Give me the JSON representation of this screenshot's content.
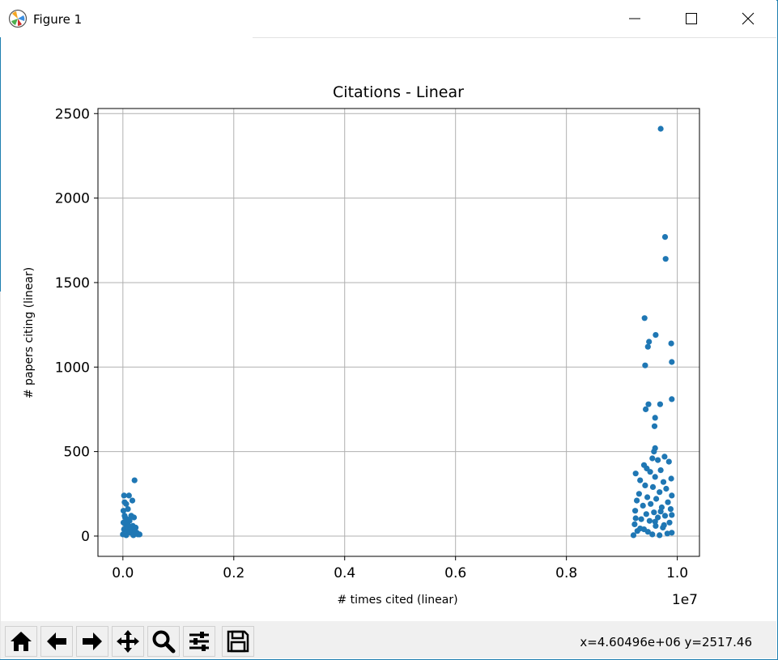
{
  "window": {
    "title": "Figure 1",
    "minimize_icon": "minimize-icon",
    "maximize_icon": "maximize-icon",
    "close_icon": "close-icon"
  },
  "toolbar": {
    "buttons": [
      "home-icon",
      "back-arrow-icon",
      "forward-arrow-icon",
      "pan-icon",
      "zoom-icon",
      "configure-subplots-icon",
      "save-icon"
    ],
    "coords_text": "x=4.60496e+06  y=2517.46"
  },
  "colors": {
    "points": "#1f77b4",
    "grid": "#b0b0b0",
    "frame_border": "#1e7fb0"
  },
  "chart_data": {
    "type": "scatter",
    "title": "Citations - Linear",
    "xlabel": "# times cited (linear)",
    "ylabel": "# papers citing (linear)",
    "x_offset_label": "1e7",
    "xlim": [
      -450000,
      10400000
    ],
    "ylim": [
      -120,
      2530
    ],
    "x_ticks": [
      0,
      2000000,
      4000000,
      6000000,
      8000000,
      10000000
    ],
    "x_tick_labels": [
      "0.0",
      "0.2",
      "0.4",
      "0.6",
      "0.8",
      "1.0"
    ],
    "y_ticks": [
      0,
      500,
      1000,
      1500,
      2000,
      2500
    ],
    "y_tick_labels": [
      "0",
      "500",
      "1000",
      "1500",
      "2000",
      "2500"
    ],
    "grid": true,
    "series": [
      {
        "points": [
          [
            20000,
            240
          ],
          [
            110000,
            240
          ],
          [
            210000,
            330
          ],
          [
            170000,
            210
          ],
          [
            30000,
            200
          ],
          [
            60000,
            190
          ],
          [
            10000,
            150
          ],
          [
            90000,
            160
          ],
          [
            150000,
            120
          ],
          [
            40000,
            110
          ],
          [
            200000,
            110
          ],
          [
            70000,
            100
          ],
          [
            10000,
            80
          ],
          [
            50000,
            70
          ],
          [
            120000,
            90
          ],
          [
            180000,
            60
          ],
          [
            230000,
            50
          ],
          [
            20000,
            40
          ],
          [
            80000,
            30
          ],
          [
            140000,
            20
          ],
          [
            250000,
            20
          ],
          [
            300000,
            10
          ],
          [
            0,
            10
          ],
          [
            60000,
            5
          ],
          [
            190000,
            5
          ],
          [
            100000,
            60
          ],
          [
            30000,
            120
          ],
          [
            160000,
            40
          ],
          [
            220000,
            30
          ],
          [
            270000,
            10
          ],
          [
            9700000,
            2410
          ],
          [
            9780000,
            1770
          ],
          [
            9790000,
            1640
          ],
          [
            9410000,
            1290
          ],
          [
            9610000,
            1190
          ],
          [
            9490000,
            1150
          ],
          [
            9470000,
            1120
          ],
          [
            9890000,
            1140
          ],
          [
            9900000,
            1030
          ],
          [
            9420000,
            1010
          ],
          [
            9900000,
            810
          ],
          [
            9480000,
            780
          ],
          [
            9690000,
            780
          ],
          [
            9430000,
            750
          ],
          [
            9600000,
            700
          ],
          [
            9590000,
            650
          ],
          [
            9600000,
            520
          ],
          [
            9580000,
            500
          ],
          [
            9770000,
            470
          ],
          [
            9550000,
            460
          ],
          [
            9650000,
            450
          ],
          [
            9850000,
            440
          ],
          [
            9400000,
            420
          ],
          [
            9450000,
            400
          ],
          [
            9700000,
            390
          ],
          [
            9510000,
            380
          ],
          [
            9250000,
            370
          ],
          [
            9600000,
            350
          ],
          [
            9890000,
            340
          ],
          [
            9330000,
            330
          ],
          [
            9750000,
            320
          ],
          [
            9420000,
            300
          ],
          [
            9560000,
            290
          ],
          [
            9800000,
            280
          ],
          [
            9680000,
            260
          ],
          [
            9310000,
            250
          ],
          [
            9900000,
            240
          ],
          [
            9460000,
            230
          ],
          [
            9620000,
            220
          ],
          [
            9270000,
            210
          ],
          [
            9830000,
            200
          ],
          [
            9520000,
            190
          ],
          [
            9380000,
            180
          ],
          [
            9720000,
            170
          ],
          [
            9880000,
            160
          ],
          [
            9240000,
            150
          ],
          [
            9580000,
            140
          ],
          [
            9440000,
            130
          ],
          [
            9780000,
            120
          ],
          [
            9650000,
            110
          ],
          [
            9350000,
            100
          ],
          [
            9500000,
            90
          ],
          [
            9860000,
            80
          ],
          [
            9230000,
            70
          ],
          [
            9610000,
            60
          ],
          [
            9740000,
            50
          ],
          [
            9400000,
            40
          ],
          [
            9280000,
            30
          ],
          [
            9900000,
            20
          ],
          [
            9550000,
            10
          ],
          [
            9210000,
            5
          ],
          [
            9680000,
            5
          ],
          [
            9820000,
            15
          ],
          [
            9470000,
            25
          ],
          [
            9330000,
            45
          ],
          [
            9760000,
            65
          ],
          [
            9600000,
            85
          ],
          [
            9250000,
            105
          ],
          [
            9900000,
            125
          ],
          [
            9700000,
            145
          ]
        ]
      }
    ]
  }
}
